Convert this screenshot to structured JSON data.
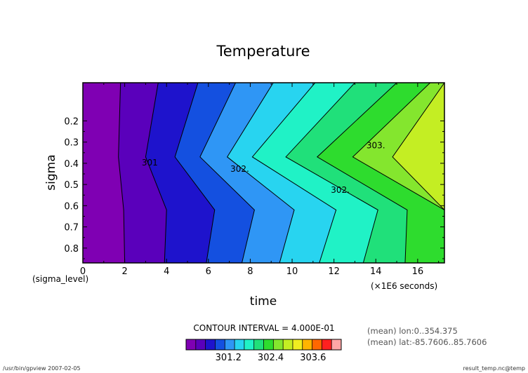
{
  "app": {
    "title": "Temperature"
  },
  "chart_data": {
    "type": "heatmap",
    "subtype": "filled-contour",
    "title": "Temperature",
    "xlabel": "time",
    "ylabel": "sigma",
    "x_unit_note": "(×1E6 seconds)",
    "y_dim_note": "(sigma_level)",
    "xlim": [
      0,
      17.28
    ],
    "ylim": [
      0.87,
      0.02
    ],
    "x_ticks": [
      0,
      2,
      4,
      6,
      8,
      10,
      12,
      14,
      16
    ],
    "y_ticks": [
      0.2,
      0.3,
      0.4,
      0.5,
      0.6,
      0.7,
      0.8
    ],
    "y_levels": [
      0.02,
      0.37,
      0.62,
      0.87
    ],
    "contour_boundaries": {
      "levels": [
        300.4,
        300.8,
        301.2,
        301.6,
        302.0,
        302.4,
        302.8,
        303.2,
        303.6,
        304.0
      ],
      "x_at_y_levels": [
        [
          1.8,
          1.7,
          1.95,
          2.0
        ],
        [
          3.6,
          3.0,
          4.0,
          3.9
        ],
        [
          5.5,
          4.4,
          6.3,
          5.9
        ],
        [
          7.3,
          5.6,
          8.2,
          7.6
        ],
        [
          9.1,
          6.9,
          10.1,
          9.4
        ],
        [
          11.1,
          8.1,
          12.1,
          11.3
        ],
        [
          13.0,
          9.7,
          14.1,
          13.4
        ],
        [
          15.0,
          11.2,
          15.5,
          15.4
        ],
        [
          16.6,
          12.9,
          17.28,
          17.28
        ],
        [
          17.28,
          14.8,
          17.28,
          17.28
        ]
      ]
    },
    "contour_labels": [
      {
        "text": "301",
        "x": 3.2,
        "y": 0.41
      },
      {
        "text": "302.",
        "x": 7.5,
        "y": 0.44
      },
      {
        "text": "302.",
        "x": 12.3,
        "y": 0.54
      },
      {
        "text": "303.",
        "x": 14.0,
        "y": 0.33
      }
    ],
    "colors": [
      "#7f00b3",
      "#5a00bb",
      "#1e13cc",
      "#1450e0",
      "#2f96f5",
      "#28d4f0",
      "#20f2c6",
      "#20e07a",
      "#2edc2e",
      "#84e62e",
      "#c4ee23",
      "#f0ee20",
      "#ffb400",
      "#ff6700",
      "#ff2020",
      "#ffa6a6"
    ],
    "colorbar": {
      "ticks": [
        "301.2",
        "302.4",
        "303.6"
      ],
      "tick_values": [
        301.2,
        302.4,
        303.6
      ],
      "range": [
        300.0,
        304.4
      ]
    },
    "contour_interval_text": "CONTOUR INTERVAL = 4.000E-01"
  },
  "info": {
    "mean_lon": "(mean) lon:0..354.375",
    "mean_lat": "(mean) lat:-85.7606..85.7606"
  },
  "footer": {
    "left": "/usr/bin/gpview  2007-02-05",
    "right": "result_temp.nc@temp"
  }
}
